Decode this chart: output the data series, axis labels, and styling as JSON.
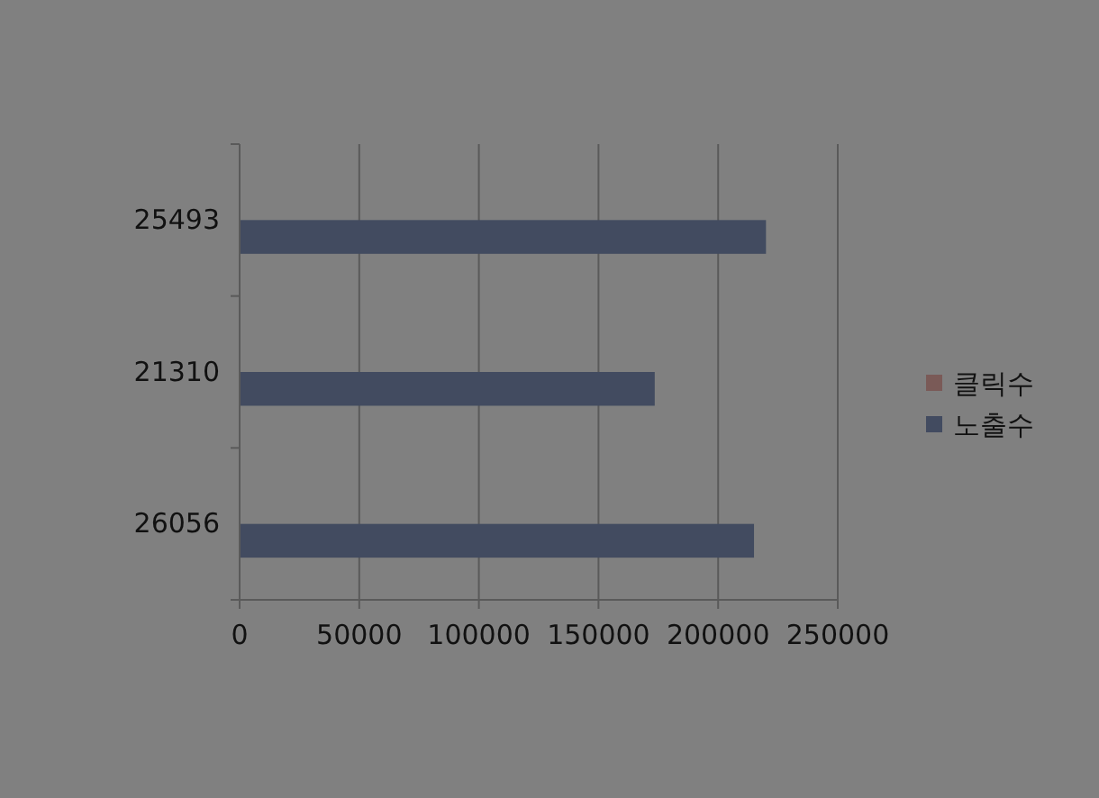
{
  "chart_data": {
    "type": "bar",
    "orientation": "horizontal",
    "categories": [
      "25493",
      "21310",
      "26056"
    ],
    "series": [
      {
        "name": "클릭수",
        "color": "#7a5a57",
        "values": [
          0,
          0,
          0
        ]
      },
      {
        "name": "노출수",
        "color": "#424b60",
        "values": [
          220000,
          173500,
          215000
        ]
      }
    ],
    "xlim": [
      0,
      250000
    ],
    "xticks": [
      0,
      50000,
      100000,
      150000,
      200000,
      250000
    ],
    "grid": "x",
    "legend": "right"
  }
}
